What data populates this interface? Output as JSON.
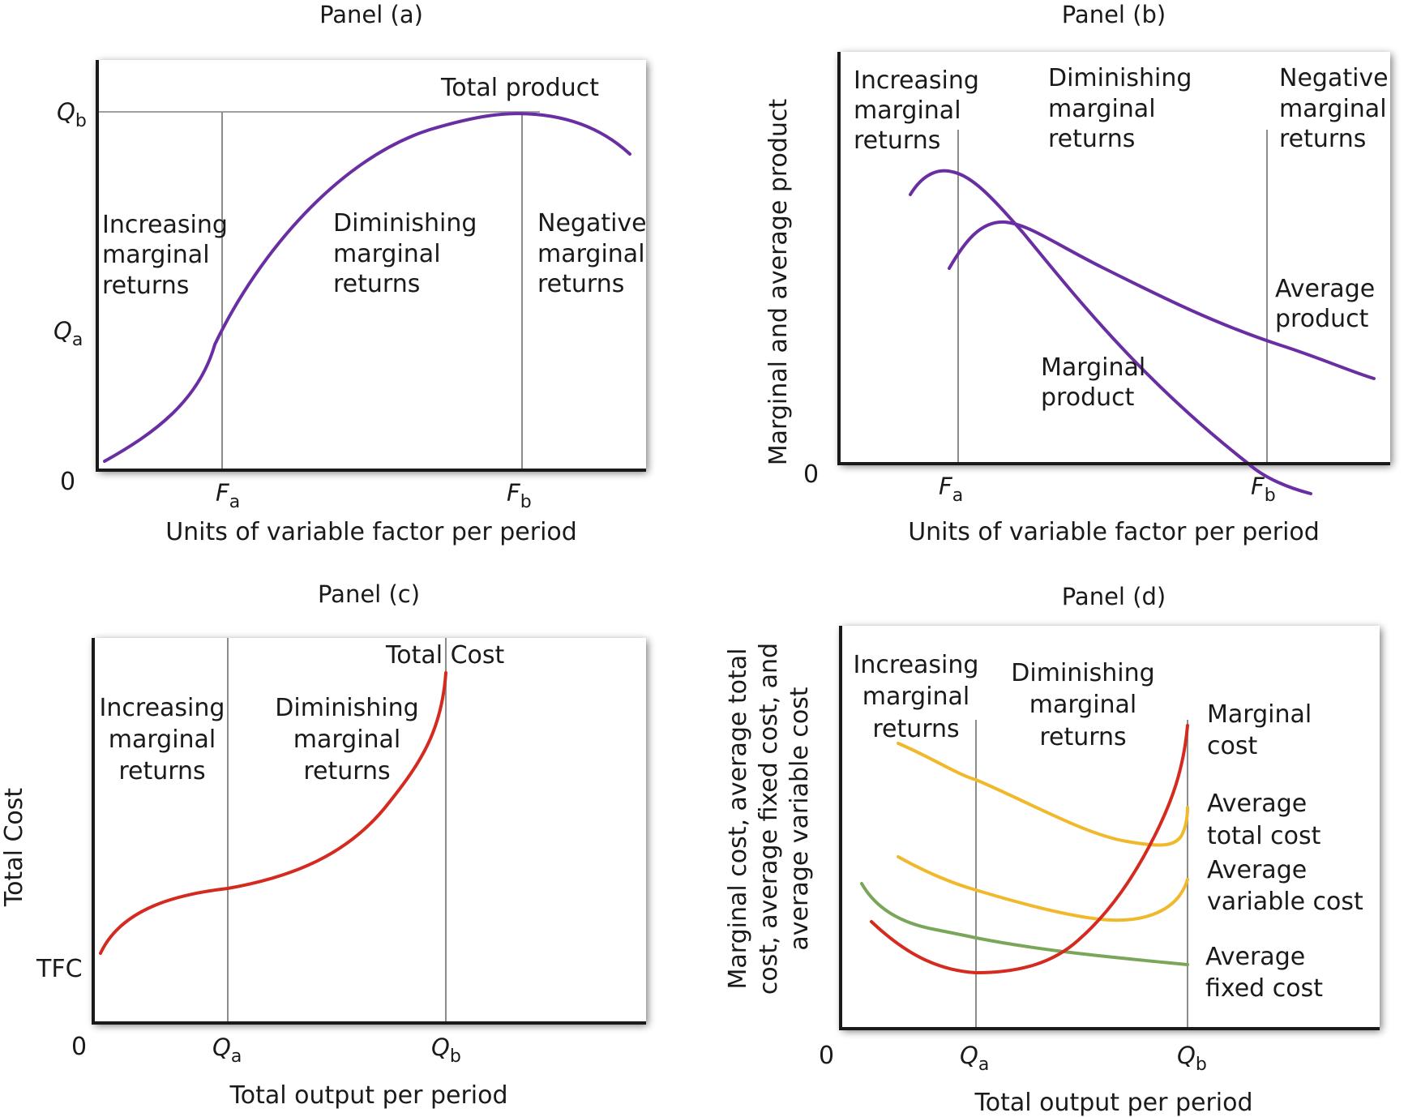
{
  "colors": {
    "purple": "#6a2ea3",
    "red": "#d42a20",
    "yellow": "#f0b92b",
    "green": "#7aa65a",
    "vline": "#8c8c8c"
  },
  "panels": {
    "a": {
      "title": "Panel (a)",
      "xlabel": "Units of variable factor per period",
      "origin": "0",
      "y_ticks": {
        "qb": "Q",
        "qb_sub": "b",
        "qa": "Q",
        "qa_sub": "a"
      },
      "x_ticks": {
        "fa": "F",
        "fa_sub": "a",
        "fb": "F",
        "fb_sub": "b"
      },
      "curve_label": "Total product",
      "regions": [
        [
          "Increasing",
          "marginal",
          "returns"
        ],
        [
          "Diminishing",
          "marginal",
          "returns"
        ],
        [
          "Negative",
          "marginal",
          "returns"
        ]
      ]
    },
    "b": {
      "title": "Panel (b)",
      "xlabel": "Units of variable factor per period",
      "ylabel": "Marginal and average product",
      "origin": "0",
      "x_ticks": {
        "fa": "F",
        "fa_sub": "a",
        "fb": "F",
        "fb_sub": "b"
      },
      "regions": [
        [
          "Increasing",
          "marginal",
          "returns"
        ],
        [
          "Diminishing",
          "marginal",
          "returns"
        ],
        [
          "Negative",
          "marginal",
          "returns"
        ]
      ],
      "average_label": [
        "Average",
        "product"
      ],
      "marginal_label": [
        "Marginal",
        "product"
      ]
    },
    "c": {
      "title": "Panel (c)",
      "xlabel": "Total output per period",
      "ylabel": "Total Cost",
      "origin": "0",
      "tfc": "TFC",
      "x_ticks": {
        "qa": "Q",
        "qa_sub": "a",
        "qb": "Q",
        "qb_sub": "b"
      },
      "curve_label": "Total Cost",
      "regions": [
        [
          "Increasing",
          "marginal",
          "returns"
        ],
        [
          "Diminishing",
          "marginal",
          "returns"
        ]
      ]
    },
    "d": {
      "title": "Panel (d)",
      "xlabel": "Total output per period",
      "ylabel": [
        "Marginal cost, average total",
        "cost, average fixed cost, and",
        "average variable cost"
      ],
      "origin": "0",
      "x_ticks": {
        "qa": "Q",
        "qa_sub": "a",
        "qb": "Q",
        "qb_sub": "b"
      },
      "regions": [
        [
          "Increasing",
          "marginal",
          "returns"
        ],
        [
          "Diminishing",
          "marginal",
          "returns"
        ]
      ],
      "legend": [
        [
          "Marginal",
          "cost"
        ],
        [
          "Average",
          "total cost"
        ],
        [
          "Average",
          "variable cost"
        ],
        [
          "Average",
          "fixed cost"
        ]
      ]
    }
  },
  "chart_data": [
    {
      "type": "line",
      "title": "Panel (a)",
      "xlabel": "Units of variable factor per period",
      "ylabel": "",
      "x_markers": [
        "Fa",
        "Fb"
      ],
      "y_markers": [
        "Qa",
        "Qb"
      ],
      "series": [
        {
          "name": "Total product",
          "color": "#6a2ea3",
          "points": [
            [
              0.01,
              0.03
            ],
            [
              0.13,
              0.25
            ],
            [
              0.225,
              0.36
            ],
            [
              0.35,
              0.64
            ],
            [
              0.5,
              0.87
            ],
            [
              0.62,
              0.97
            ],
            [
              0.77,
              1.0
            ],
            [
              0.86,
              0.98
            ],
            [
              0.97,
              0.88
            ]
          ]
        }
      ]
    },
    {
      "type": "line",
      "title": "Panel (b)",
      "xlabel": "Units of variable factor per period",
      "ylabel": "Marginal and average product",
      "x_markers": [
        "Fa",
        "Fb"
      ],
      "series": [
        {
          "name": "Marginal product",
          "color": "#6a2ea3",
          "points": [
            [
              0.13,
              0.79
            ],
            [
              0.2,
              0.85
            ],
            [
              0.3,
              0.7
            ],
            [
              0.5,
              0.35
            ],
            [
              0.69,
              0.0
            ],
            [
              0.86,
              -0.09
            ]
          ]
        },
        {
          "name": "Average product",
          "color": "#6a2ea3",
          "points": [
            [
              0.2,
              0.56
            ],
            [
              0.29,
              0.7
            ],
            [
              0.4,
              0.64
            ],
            [
              0.6,
              0.5
            ],
            [
              0.78,
              0.36
            ],
            [
              0.97,
              0.24
            ]
          ]
        }
      ]
    },
    {
      "type": "line",
      "title": "Panel (c)",
      "xlabel": "Total output per period",
      "ylabel": "Total Cost",
      "x_markers": [
        "Qa",
        "Qb"
      ],
      "y_markers": [
        "TFC"
      ],
      "series": [
        {
          "name": "Total Cost",
          "color": "#d42a20",
          "points": [
            [
              0.01,
              0.19
            ],
            [
              0.12,
              0.35
            ],
            [
              0.244,
              0.4
            ],
            [
              0.4,
              0.47
            ],
            [
              0.53,
              0.6
            ],
            [
              0.6,
              0.76
            ],
            [
              0.64,
              0.97
            ]
          ]
        }
      ]
    },
    {
      "type": "line",
      "title": "Panel (d)",
      "xlabel": "Total output per period",
      "ylabel": "Marginal cost, average total cost, average fixed cost, and average variable cost",
      "x_markers": [
        "Qa",
        "Qb"
      ],
      "series": [
        {
          "name": "Marginal cost",
          "color": "#d42a20",
          "points": [
            [
              0.06,
              0.37
            ],
            [
              0.25,
              0.19
            ],
            [
              0.45,
              0.25
            ],
            [
              0.53,
              0.38
            ],
            [
              0.58,
              0.6
            ],
            [
              0.63,
              0.96
            ]
          ]
        },
        {
          "name": "Average total cost",
          "color": "#f0b92b",
          "points": [
            [
              0.11,
              0.93
            ],
            [
              0.25,
              0.82
            ],
            [
              0.45,
              0.66
            ],
            [
              0.56,
              0.61
            ],
            [
              0.62,
              0.64
            ],
            [
              0.63,
              0.72
            ]
          ]
        },
        {
          "name": "Average variable cost",
          "color": "#f0b92b",
          "points": [
            [
              0.11,
              0.58
            ],
            [
              0.25,
              0.46
            ],
            [
              0.4,
              0.37
            ],
            [
              0.52,
              0.36
            ],
            [
              0.6,
              0.43
            ],
            [
              0.63,
              0.49
            ]
          ]
        },
        {
          "name": "Average fixed cost",
          "color": "#7aa65a",
          "points": [
            [
              0.04,
              0.49
            ],
            [
              0.12,
              0.4
            ],
            [
              0.25,
              0.31
            ],
            [
              0.45,
              0.25
            ],
            [
              0.63,
              0.22
            ]
          ]
        }
      ]
    }
  ]
}
